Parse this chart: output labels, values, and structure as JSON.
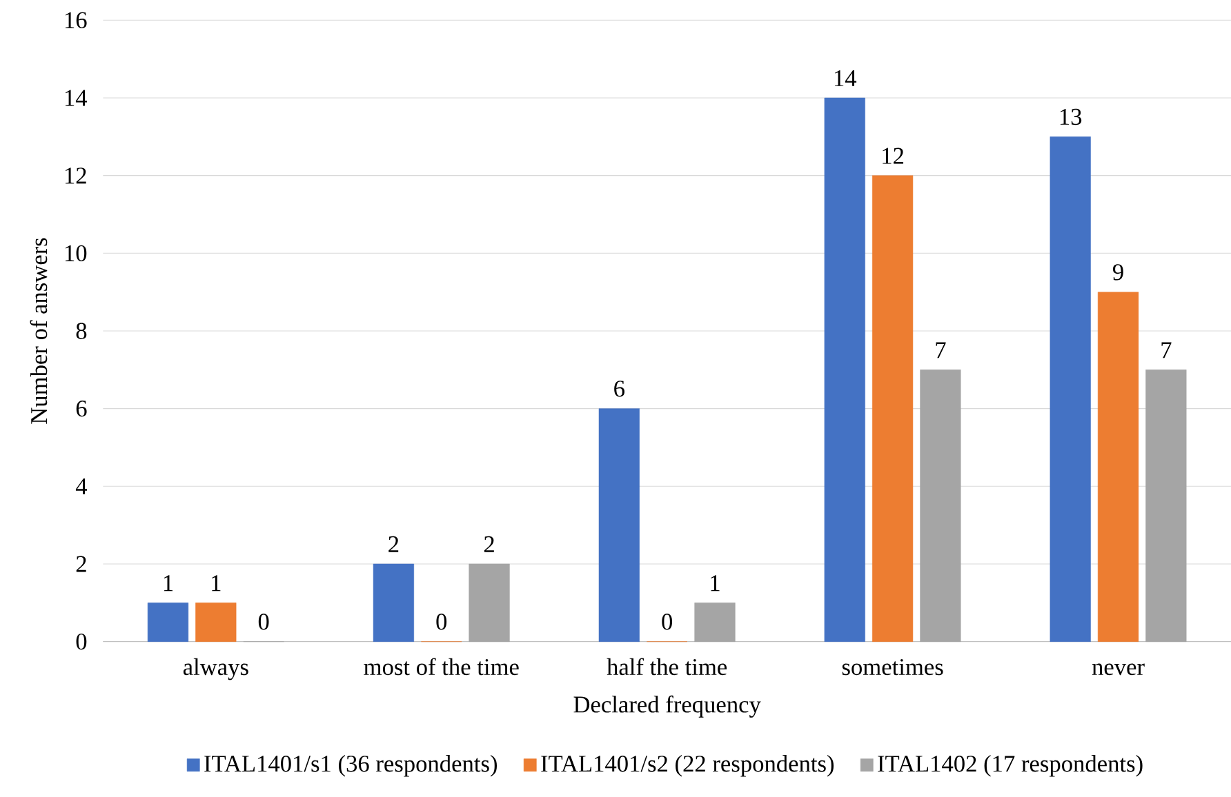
{
  "chart_data": {
    "type": "bar",
    "xlabel": "Declared frequency",
    "ylabel": "Number of answers",
    "categories": [
      "always",
      "most of the time",
      "half the time",
      "sometimes",
      "never"
    ],
    "series": [
      {
        "name": "ITAL1401/s1 (36 respondents)",
        "color": "#4472c4",
        "values": [
          1,
          2,
          6,
          14,
          13
        ]
      },
      {
        "name": "ITAL1401/s2 (22 respondents)",
        "color": "#ed7d31",
        "values": [
          1,
          0,
          0,
          12,
          9
        ]
      },
      {
        "name": "ITAL1402 (17 respondents)",
        "color": "#a5a5a5",
        "values": [
          0,
          2,
          1,
          7,
          7
        ]
      }
    ],
    "ylim": [
      0,
      16
    ],
    "yticks": [
      0,
      2,
      4,
      6,
      8,
      10,
      12,
      14,
      16
    ],
    "grid": "y",
    "legend": "bottom",
    "data_labels": true
  }
}
